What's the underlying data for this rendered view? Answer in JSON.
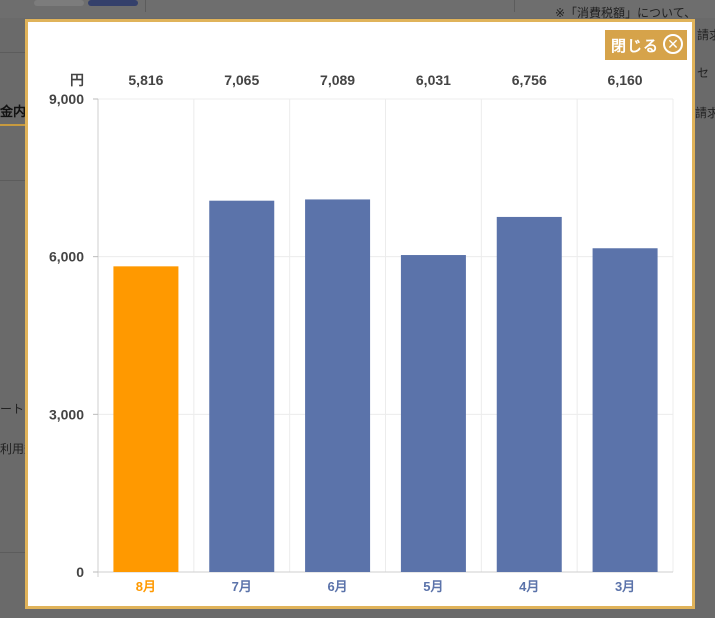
{
  "background": {
    "tab_label": "金内訳",
    "note_line1": "※「消費税額」について、",
    "note_line2": "請求",
    "note_line3": "セ",
    "note_line4": "請求",
    "side_text1": "ート",
    "side_text2": "利用規"
  },
  "modal": {
    "close_label": "閉じる",
    "close_icon": "close-icon"
  },
  "colors": {
    "highlight": "#ff9900",
    "bar": "#5b73aa",
    "highlight_label": "#ff9900",
    "label": "#5b73aa",
    "border": "#e0b35a",
    "close_bg": "#d6a34a"
  },
  "chart_data": {
    "type": "bar",
    "unit_label": "円",
    "categories": [
      "8月",
      "7月",
      "6月",
      "5月",
      "4月",
      "3月"
    ],
    "values": [
      5816,
      7065,
      7089,
      6031,
      6756,
      6160
    ],
    "value_labels": [
      "5,816",
      "7,065",
      "7,089",
      "6,031",
      "6,756",
      "6,160"
    ],
    "highlight_index": 0,
    "ylim": [
      0,
      9000
    ],
    "yticks": [
      0,
      3000,
      6000,
      9000
    ],
    "ytick_labels": [
      "0",
      "3,000",
      "6,000",
      "9,000"
    ],
    "grid": true
  }
}
